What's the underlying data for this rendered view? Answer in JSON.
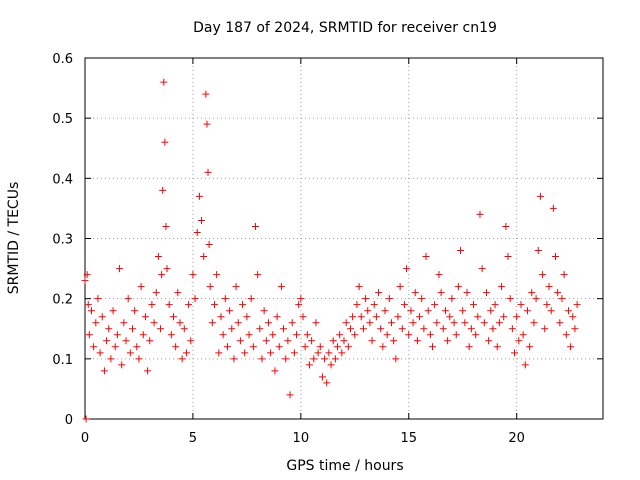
{
  "chart_data": {
    "type": "scatter",
    "title": "Day 187 of 2024, SRMTID for receiver cn19",
    "xlabel": "GPS time / hours",
    "ylabel": "SRMTID / TECUs",
    "xlim": [
      0,
      24
    ],
    "ylim": [
      0,
      0.6
    ],
    "grid": true,
    "marker": "+",
    "color": "#ff0000",
    "x_ticks": [
      {
        "value": 0,
        "label": "0"
      },
      {
        "value": 5,
        "label": "5"
      },
      {
        "value": 10,
        "label": "10"
      },
      {
        "value": 15,
        "label": "15"
      },
      {
        "value": 20,
        "label": "20"
      }
    ],
    "y_ticks": [
      {
        "value": 0,
        "label": "0"
      },
      {
        "value": 0.1,
        "label": "0.1"
      },
      {
        "value": 0.2,
        "label": "0.2"
      },
      {
        "value": 0.3,
        "label": "0.3"
      },
      {
        "value": 0.4,
        "label": "0.4"
      },
      {
        "value": 0.5,
        "label": "0.5"
      },
      {
        "value": 0.6,
        "label": "0.6"
      }
    ],
    "series": [
      {
        "name": "SRMTID",
        "x": [
          0.0,
          0.05,
          0.1,
          0.15,
          0.2,
          0.3,
          0.4,
          0.5,
          0.6,
          0.7,
          0.8,
          0.9,
          1.0,
          1.1,
          1.2,
          1.3,
          1.4,
          1.5,
          1.6,
          1.7,
          1.8,
          1.9,
          2.0,
          2.1,
          2.2,
          2.3,
          2.4,
          2.5,
          2.6,
          2.7,
          2.8,
          2.9,
          3.0,
          3.1,
          3.2,
          3.3,
          3.4,
          3.5,
          3.55,
          3.6,
          3.65,
          3.7,
          3.75,
          3.8,
          3.9,
          4.0,
          4.1,
          4.2,
          4.3,
          4.4,
          4.5,
          4.6,
          4.7,
          4.8,
          4.9,
          5.0,
          5.1,
          5.2,
          5.3,
          5.4,
          5.5,
          5.6,
          5.65,
          5.7,
          5.75,
          5.8,
          5.9,
          6.0,
          6.1,
          6.2,
          6.3,
          6.4,
          6.5,
          6.6,
          6.7,
          6.8,
          6.9,
          7.0,
          7.1,
          7.2,
          7.3,
          7.4,
          7.5,
          7.6,
          7.7,
          7.8,
          7.9,
          8.0,
          8.1,
          8.2,
          8.3,
          8.4,
          8.5,
          8.6,
          8.7,
          8.8,
          8.9,
          9.0,
          9.1,
          9.2,
          9.3,
          9.4,
          9.5,
          9.6,
          9.7,
          9.8,
          9.9,
          10.0,
          10.1,
          10.2,
          10.3,
          10.4,
          10.5,
          10.6,
          10.7,
          10.8,
          10.9,
          11.0,
          11.1,
          11.2,
          11.3,
          11.4,
          11.5,
          11.6,
          11.7,
          11.8,
          11.9,
          12.0,
          12.1,
          12.2,
          12.3,
          12.4,
          12.5,
          12.6,
          12.7,
          12.8,
          12.9,
          13.0,
          13.1,
          13.2,
          13.3,
          13.4,
          13.5,
          13.6,
          13.7,
          13.8,
          13.9,
          14.0,
          14.1,
          14.2,
          14.3,
          14.4,
          14.5,
          14.6,
          14.7,
          14.8,
          14.9,
          15.0,
          15.1,
          15.2,
          15.3,
          15.4,
          15.5,
          15.6,
          15.7,
          15.8,
          15.9,
          16.0,
          16.1,
          16.2,
          16.3,
          16.4,
          16.5,
          16.6,
          16.7,
          16.8,
          16.9,
          17.0,
          17.1,
          17.2,
          17.3,
          17.4,
          17.5,
          17.6,
          17.7,
          17.8,
          17.9,
          18.0,
          18.1,
          18.2,
          18.3,
          18.4,
          18.5,
          18.6,
          18.7,
          18.8,
          18.9,
          19.0,
          19.1,
          19.2,
          19.3,
          19.4,
          19.5,
          19.6,
          19.7,
          19.8,
          19.9,
          20.0,
          20.1,
          20.2,
          20.3,
          20.4,
          20.5,
          20.6,
          20.7,
          20.8,
          20.9,
          21.0,
          21.1,
          21.2,
          21.3,
          21.4,
          21.5,
          21.6,
          21.7,
          21.8,
          21.9,
          22.0,
          22.1,
          22.2,
          22.3,
          22.4,
          22.5,
          22.6,
          22.7,
          22.8
        ],
        "y": [
          0.23,
          0.0,
          0.24,
          0.19,
          0.14,
          0.18,
          0.12,
          0.16,
          0.2,
          0.11,
          0.17,
          0.08,
          0.13,
          0.15,
          0.1,
          0.18,
          0.12,
          0.14,
          0.25,
          0.09,
          0.16,
          0.13,
          0.2,
          0.11,
          0.15,
          0.18,
          0.12,
          0.1,
          0.22,
          0.14,
          0.17,
          0.08,
          0.13,
          0.19,
          0.16,
          0.21,
          0.27,
          0.15,
          0.24,
          0.38,
          0.56,
          0.46,
          0.32,
          0.25,
          0.19,
          0.14,
          0.17,
          0.12,
          0.21,
          0.16,
          0.1,
          0.15,
          0.11,
          0.19,
          0.13,
          0.24,
          0.2,
          0.31,
          0.37,
          0.33,
          0.27,
          0.54,
          0.49,
          0.41,
          0.29,
          0.22,
          0.16,
          0.19,
          0.24,
          0.11,
          0.17,
          0.14,
          0.2,
          0.12,
          0.18,
          0.15,
          0.1,
          0.22,
          0.16,
          0.13,
          0.19,
          0.11,
          0.17,
          0.14,
          0.2,
          0.12,
          0.32,
          0.24,
          0.15,
          0.1,
          0.18,
          0.13,
          0.16,
          0.11,
          0.14,
          0.08,
          0.17,
          0.12,
          0.22,
          0.15,
          0.1,
          0.13,
          0.04,
          0.16,
          0.11,
          0.14,
          0.19,
          0.2,
          0.17,
          0.12,
          0.14,
          0.09,
          0.13,
          0.1,
          0.16,
          0.11,
          0.12,
          0.07,
          0.1,
          0.06,
          0.11,
          0.09,
          0.13,
          0.1,
          0.12,
          0.14,
          0.11,
          0.13,
          0.16,
          0.12,
          0.15,
          0.17,
          0.14,
          0.19,
          0.22,
          0.17,
          0.15,
          0.2,
          0.18,
          0.16,
          0.13,
          0.19,
          0.17,
          0.21,
          0.15,
          0.12,
          0.18,
          0.14,
          0.2,
          0.16,
          0.13,
          0.1,
          0.17,
          0.22,
          0.15,
          0.19,
          0.25,
          0.14,
          0.18,
          0.16,
          0.21,
          0.13,
          0.17,
          0.2,
          0.15,
          0.27,
          0.18,
          0.14,
          0.12,
          0.19,
          0.16,
          0.24,
          0.21,
          0.15,
          0.18,
          0.13,
          0.17,
          0.2,
          0.16,
          0.14,
          0.22,
          0.28,
          0.18,
          0.16,
          0.21,
          0.12,
          0.15,
          0.19,
          0.14,
          0.17,
          0.34,
          0.25,
          0.16,
          0.21,
          0.13,
          0.18,
          0.15,
          0.19,
          0.12,
          0.16,
          0.22,
          0.17,
          0.32,
          0.27,
          0.2,
          0.15,
          0.11,
          0.17,
          0.13,
          0.19,
          0.14,
          0.09,
          0.18,
          0.12,
          0.21,
          0.16,
          0.2,
          0.28,
          0.37,
          0.24,
          0.15,
          0.19,
          0.22,
          0.18,
          0.35,
          0.27,
          0.21,
          0.16,
          0.2,
          0.24,
          0.14,
          0.18,
          0.12,
          0.17,
          0.15,
          0.19
        ]
      }
    ]
  }
}
